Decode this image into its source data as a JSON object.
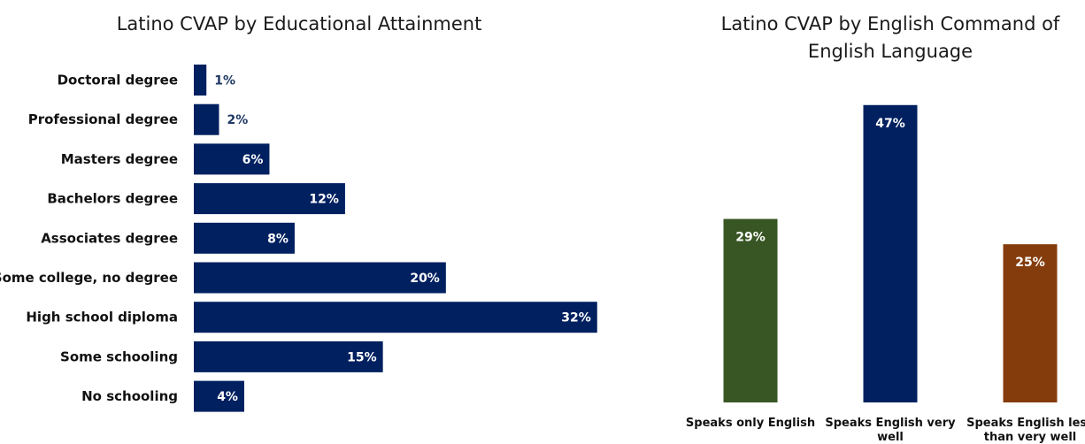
{
  "chart_data": [
    {
      "type": "bar",
      "orientation": "horizontal",
      "title": "Latino CVAP by Educational Attainment",
      "xlabel": "",
      "ylabel": "",
      "unit": "%",
      "xlim": [
        0,
        33
      ],
      "grid": false,
      "categories": [
        "Doctoral degree",
        "Professional degree",
        "Masters degree",
        "Bachelors degree",
        "Associates degree",
        "Some college, no degree",
        "High school diploma",
        "Some schooling",
        "No schooling"
      ],
      "values": [
        1,
        2,
        6,
        12,
        8,
        20,
        32,
        15,
        4
      ],
      "data_labels": [
        "1%",
        "2%",
        "6%",
        "12%",
        "8%",
        "20%",
        "32%",
        "15%",
        "4%"
      ],
      "bar_color": "#002060",
      "label_inside_color": "#ffffff",
      "label_outside_color": "#1f3864"
    },
    {
      "type": "bar",
      "orientation": "vertical",
      "title": "Latino CVAP by English Command of English Language",
      "title_lines": [
        "Latino CVAP by English Command of",
        "English Language"
      ],
      "xlabel": "",
      "ylabel": "",
      "unit": "%",
      "ylim": [
        0,
        52
      ],
      "grid": false,
      "categories": [
        "Speaks only English",
        "Speaks English very well",
        "Speaks English less than very well"
      ],
      "category_lines": [
        [
          "Speaks only English"
        ],
        [
          "Speaks English very",
          "well"
        ],
        [
          "Speaks English less",
          "than very well"
        ]
      ],
      "values": [
        29,
        47,
        25
      ],
      "data_labels": [
        "29%",
        "47%",
        "25%"
      ],
      "colors": [
        "#375623",
        "#002060",
        "#843c0c"
      ],
      "label_color": "#ffffff"
    }
  ]
}
